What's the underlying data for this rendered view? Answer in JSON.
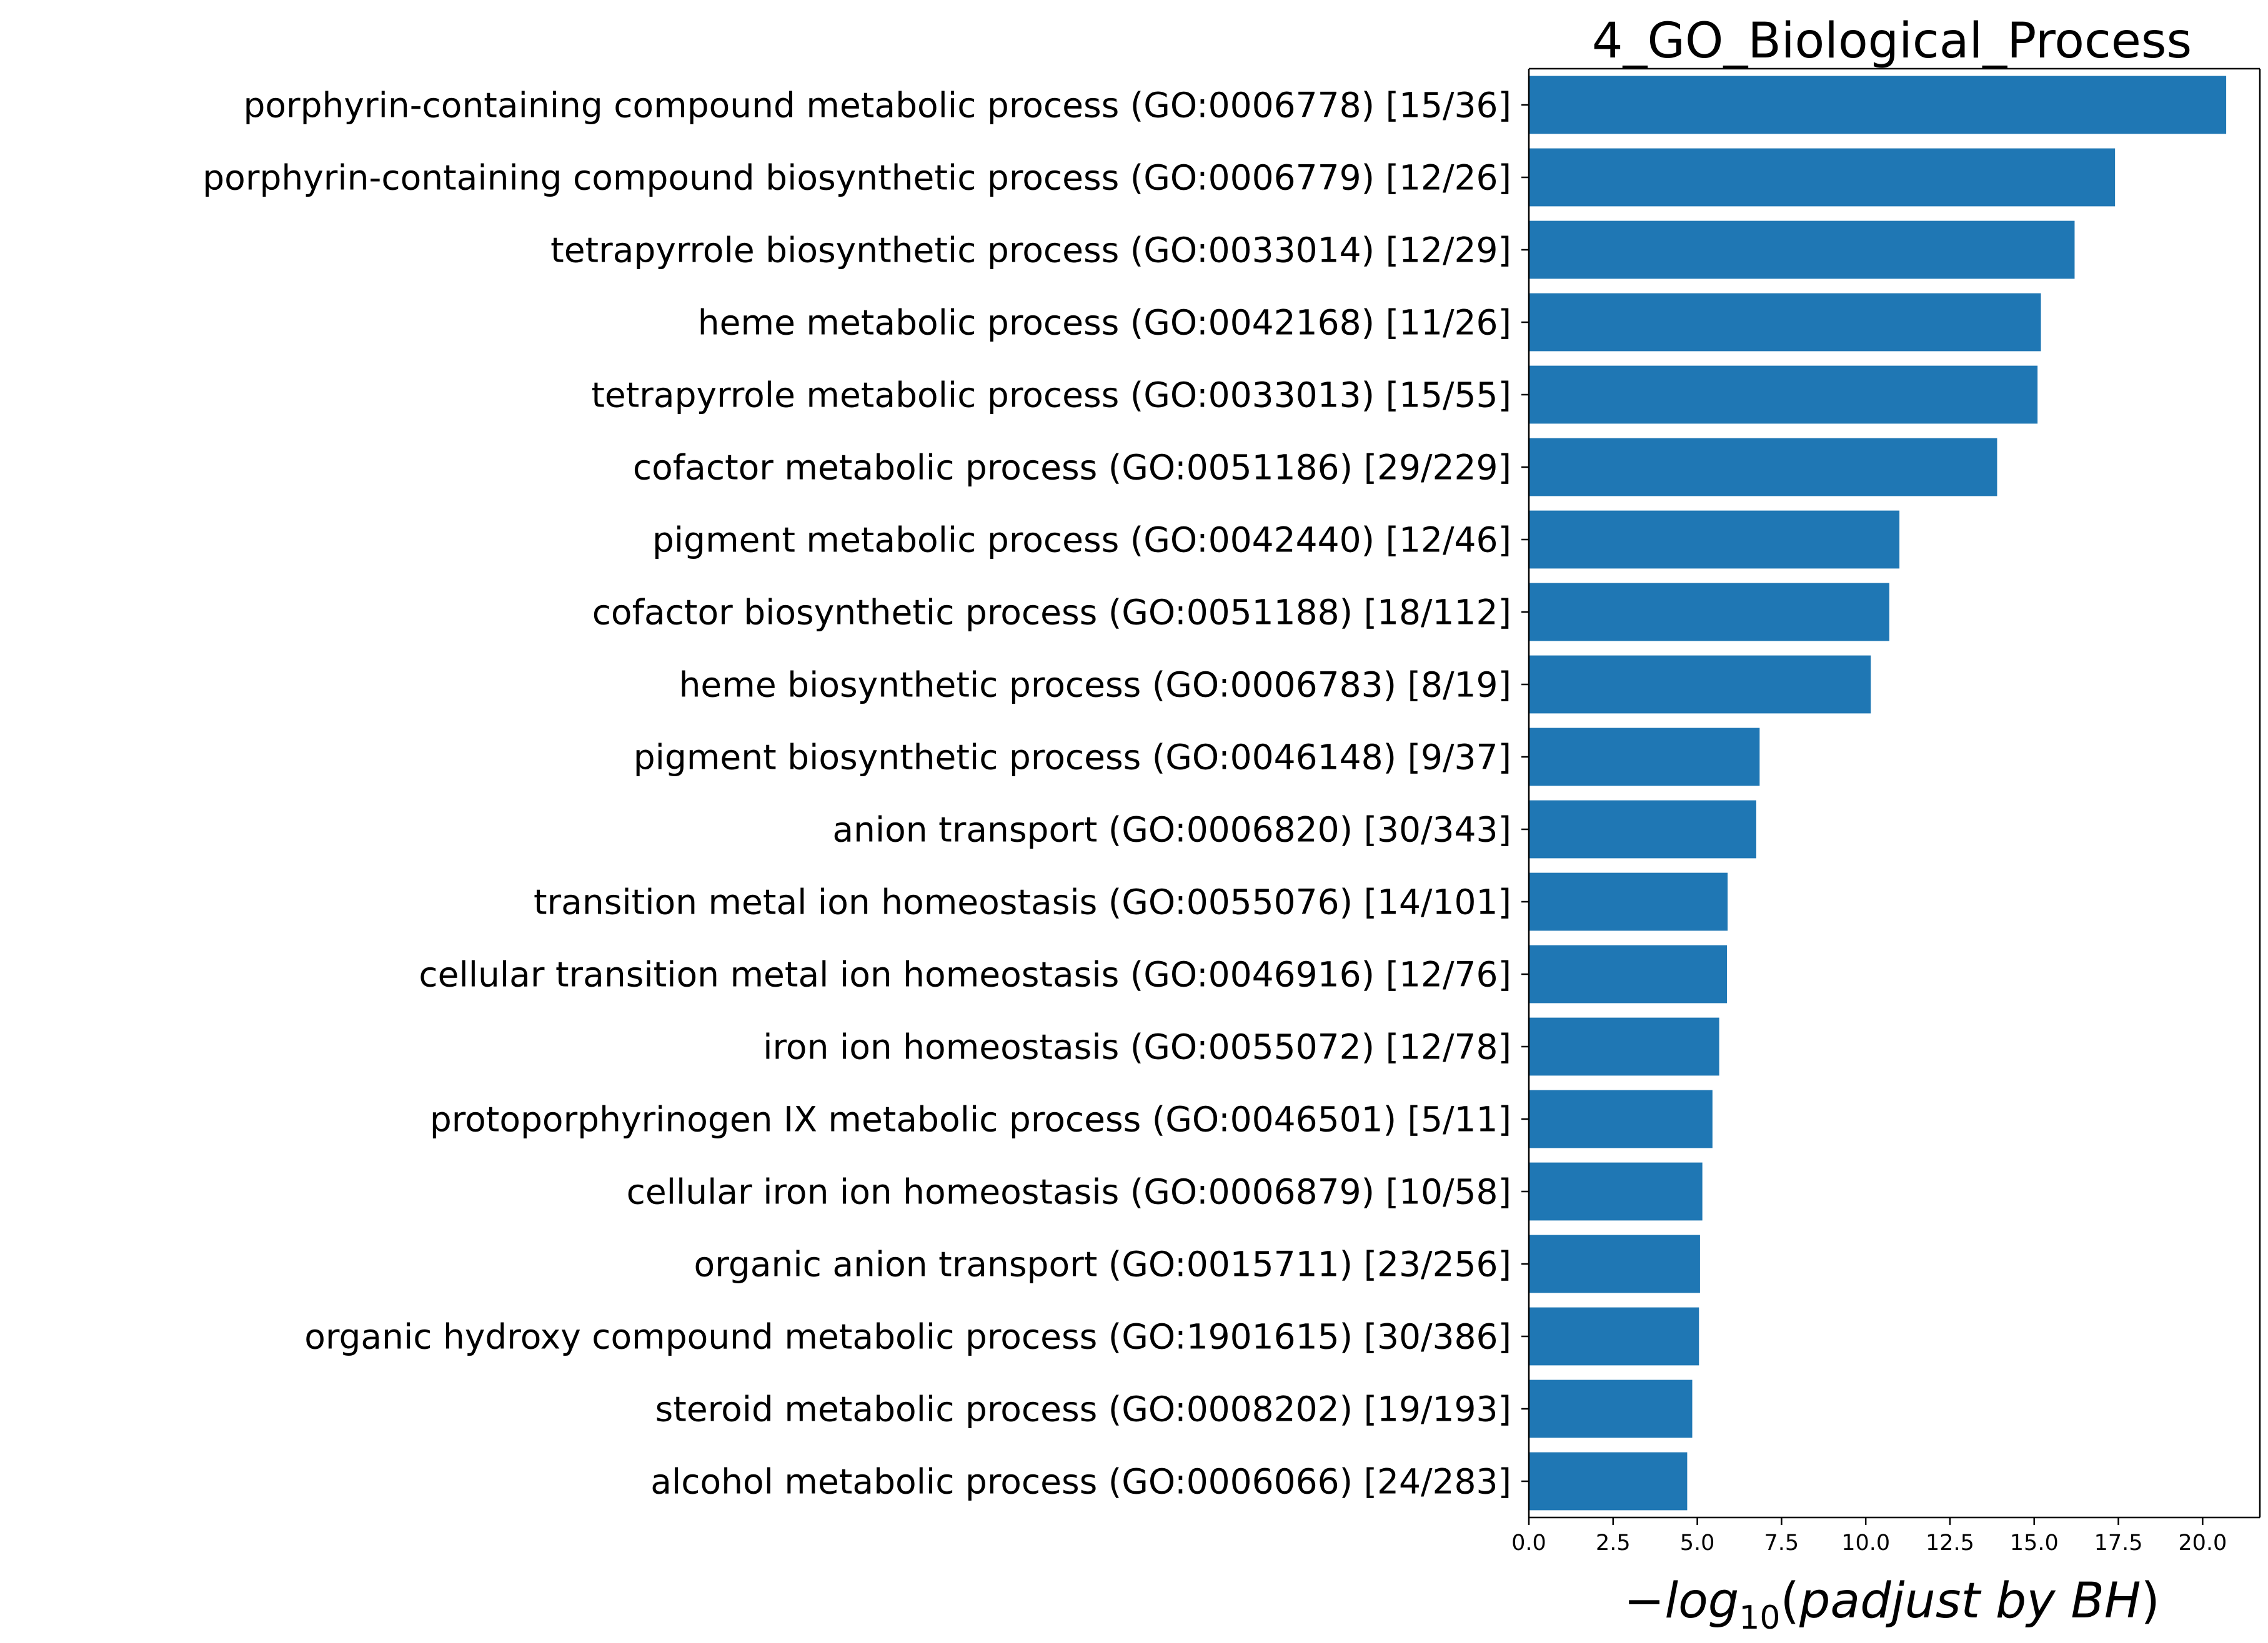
{
  "chart_data": {
    "type": "bar",
    "orientation": "horizontal",
    "title": "4_GO_Biological_Process",
    "xlabel": {
      "minus": "−",
      "log": "log",
      "sub": "10",
      "open": "(",
      "text": "padjust by BH",
      "close": ")"
    },
    "ylabel": "",
    "xlim": [
      0,
      21.7
    ],
    "xticks": [
      "0.0",
      "2.5",
      "5.0",
      "7.5",
      "10.0",
      "12.5",
      "15.0",
      "17.5",
      "20.0"
    ],
    "bar_color": "#1f77b4",
    "categories": [
      "porphyrin-containing compound metabolic process (GO:0006778) [15/36]",
      "porphyrin-containing compound biosynthetic process (GO:0006779) [12/26]",
      "tetrapyrrole biosynthetic process (GO:0033014) [12/29]",
      "heme metabolic process (GO:0042168) [11/26]",
      "tetrapyrrole metabolic process (GO:0033013) [15/55]",
      "cofactor metabolic process (GO:0051186) [29/229]",
      "pigment metabolic process (GO:0042440) [12/46]",
      "cofactor biosynthetic process (GO:0051188) [18/112]",
      "heme biosynthetic process (GO:0006783) [8/19]",
      "pigment biosynthetic process (GO:0046148) [9/37]",
      "anion transport (GO:0006820) [30/343]",
      "transition metal ion homeostasis (GO:0055076) [14/101]",
      "cellular transition metal ion homeostasis (GO:0046916) [12/76]",
      "iron ion homeostasis (GO:0055072) [12/78]",
      "protoporphyrinogen IX metabolic process (GO:0046501) [5/11]",
      "cellular iron ion homeostasis (GO:0006879) [10/58]",
      "organic anion transport (GO:0015711) [23/256]",
      "organic hydroxy compound metabolic process (GO:1901615) [30/386]",
      "steroid metabolic process (GO:0008202) [19/193]",
      "alcohol metabolic process (GO:0006066) [24/283]"
    ],
    "values": [
      20.7,
      17.4,
      16.2,
      15.2,
      15.1,
      13.9,
      11.0,
      10.7,
      10.15,
      6.85,
      6.75,
      5.9,
      5.88,
      5.65,
      5.45,
      5.15,
      5.08,
      5.05,
      4.85,
      4.7
    ]
  }
}
